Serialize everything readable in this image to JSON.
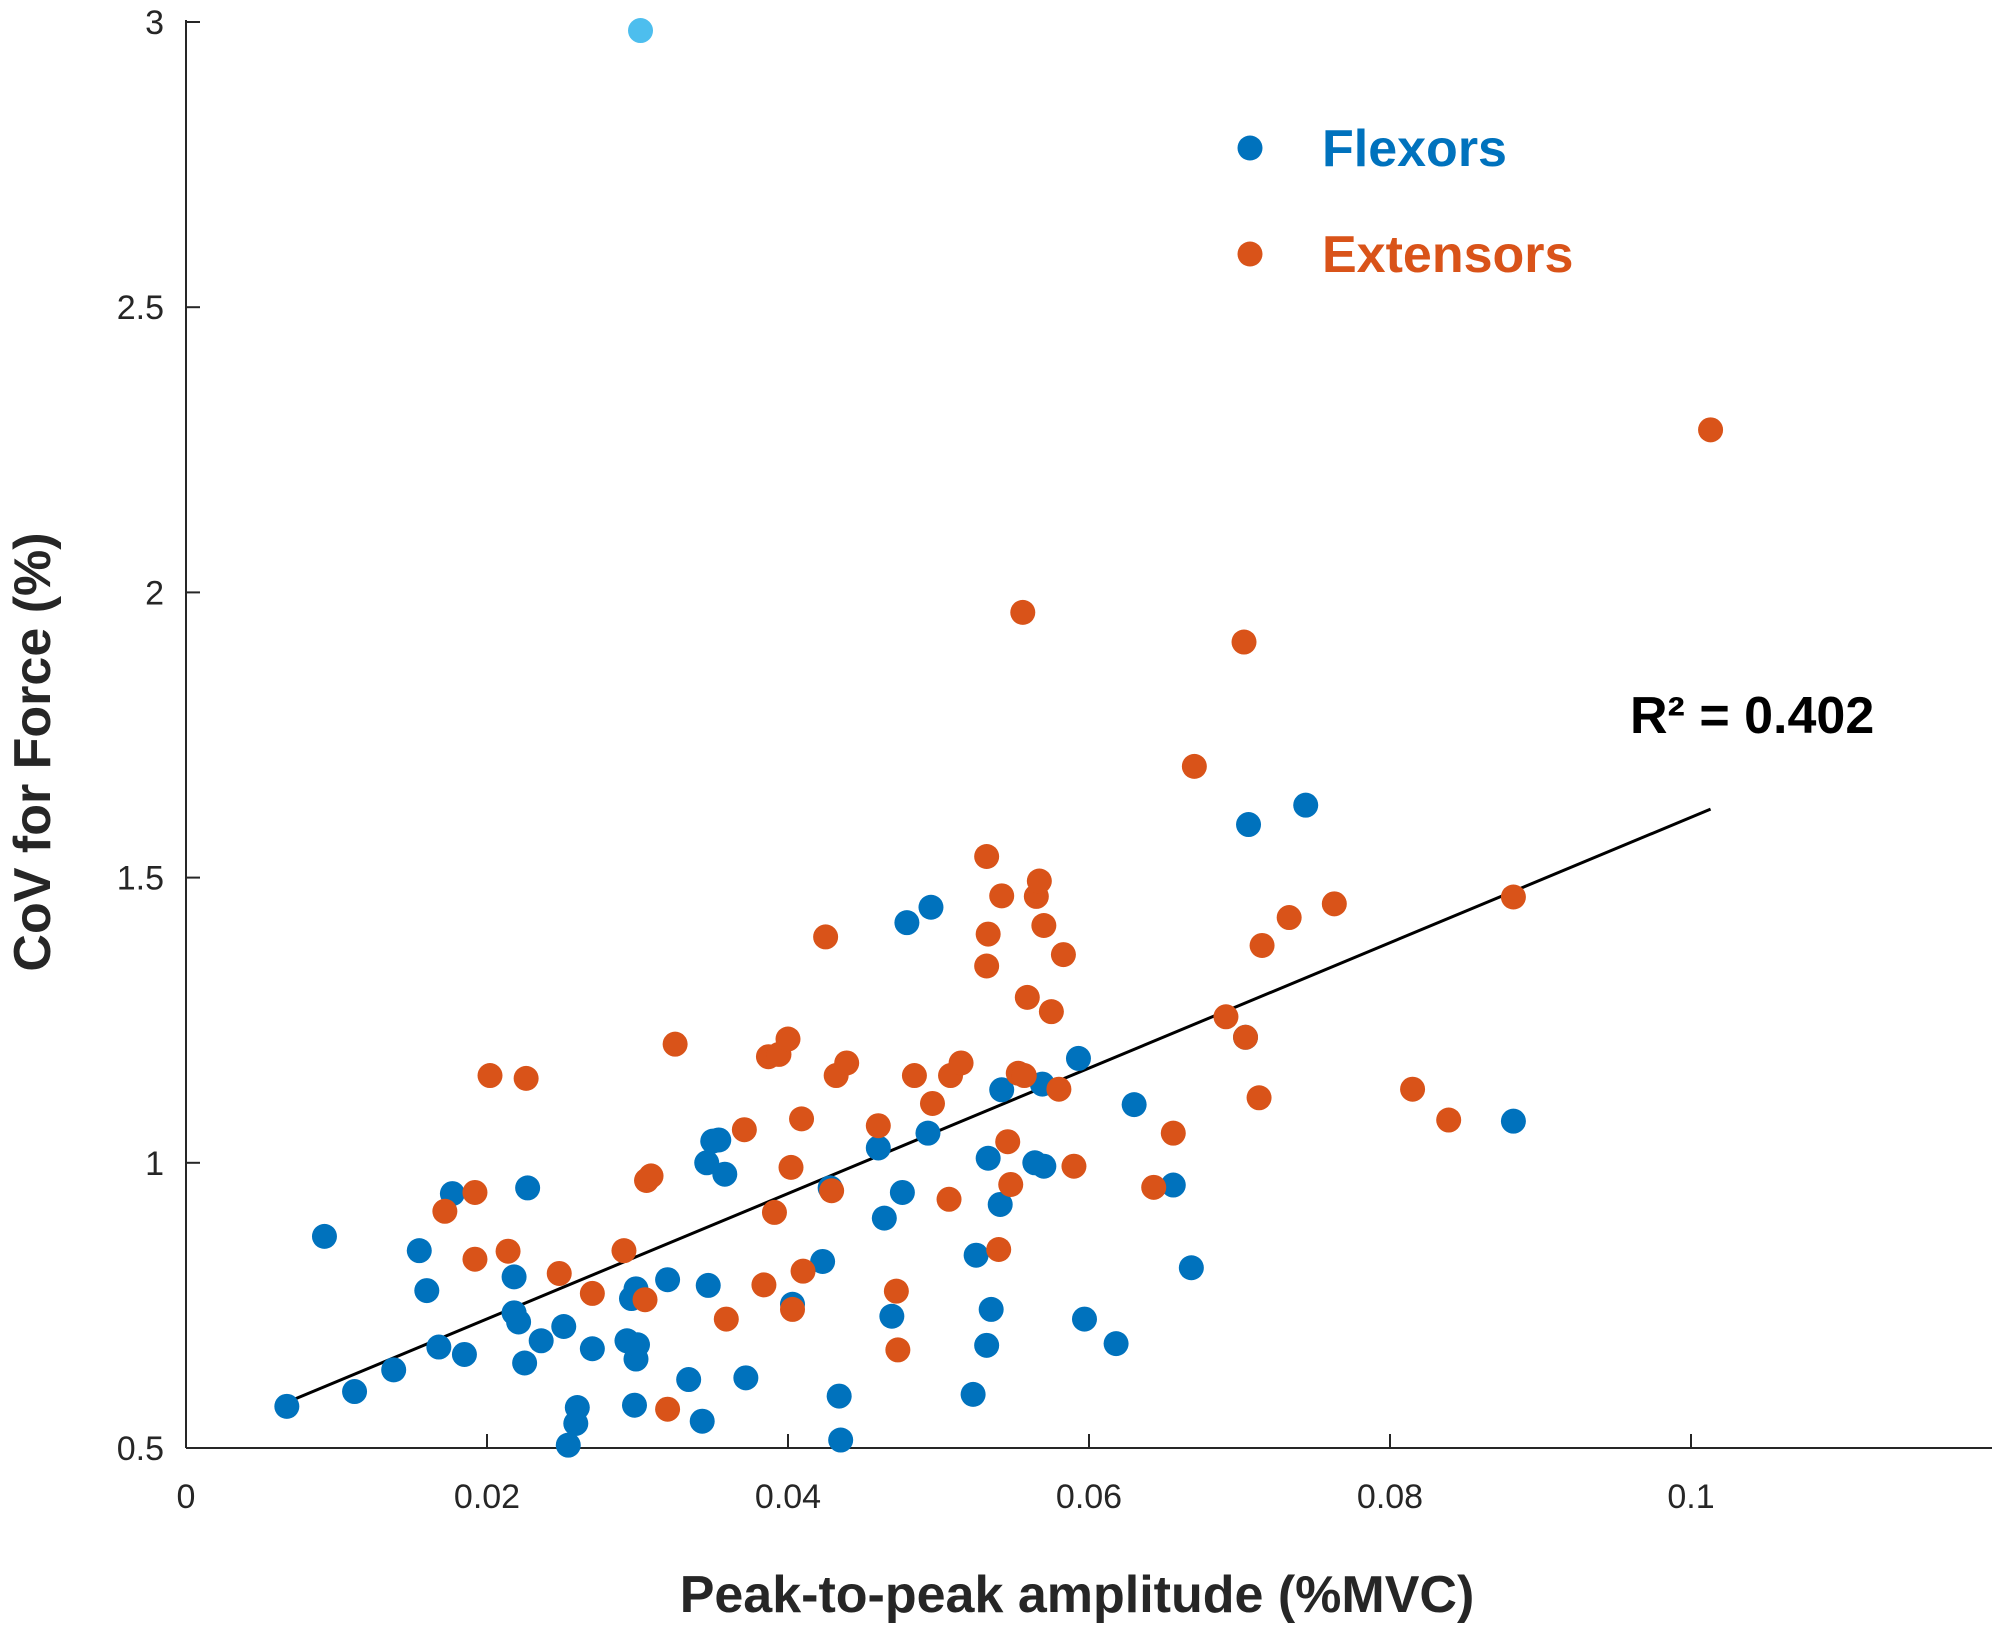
{
  "chart_data": {
    "type": "scatter",
    "xlabel": "Peak-to-peak amplitude (%MVC)",
    "ylabel": "CoV for Force (%)",
    "xlim": [
      0,
      0.12
    ],
    "ylim": [
      0.5,
      3
    ],
    "x_ticks": [
      0,
      0.02,
      0.04,
      0.06,
      0.08,
      0.1
    ],
    "x_tick_labels": [
      "0",
      "0.02",
      "0.04",
      "0.06",
      "0.08",
      "0.1"
    ],
    "y_ticks": [
      0.5,
      1,
      1.5,
      2,
      2.5,
      3
    ],
    "y_tick_labels": [
      "0.5",
      "1",
      "1.5",
      "2",
      "2.5",
      "3"
    ],
    "grid": false,
    "legend_position": "top-right",
    "colors": {
      "flexors": "#0072BD",
      "extensors": "#D95319",
      "highlight": "#4DBEEE",
      "fit": "#000000",
      "axis": "#262626"
    },
    "series": [
      {
        "name": "Flexors",
        "color": "#0072BD",
        "points": [
          [
            0.0067,
            0.573
          ],
          [
            0.0092,
            0.871
          ],
          [
            0.0112,
            0.599
          ],
          [
            0.0138,
            0.637
          ],
          [
            0.0155,
            0.846
          ],
          [
            0.016,
            0.776
          ],
          [
            0.0168,
            0.677
          ],
          [
            0.0177,
            0.946
          ],
          [
            0.0185,
            0.664
          ],
          [
            0.0218,
            0.737
          ],
          [
            0.0218,
            0.8
          ],
          [
            0.0221,
            0.721
          ],
          [
            0.0225,
            0.649
          ],
          [
            0.0227,
            0.956
          ],
          [
            0.0236,
            0.688
          ],
          [
            0.0251,
            0.713
          ],
          [
            0.0254,
            0.505
          ],
          [
            0.0259,
            0.543
          ],
          [
            0.026,
            0.571
          ],
          [
            0.027,
            0.674
          ],
          [
            0.0293,
            0.688
          ],
          [
            0.0296,
            0.762
          ],
          [
            0.0298,
            0.575
          ],
          [
            0.0299,
            0.656
          ],
          [
            0.03,
            0.681
          ],
          [
            0.0299,
            0.779
          ],
          [
            0.032,
            0.795
          ],
          [
            0.0334,
            0.62
          ],
          [
            0.0343,
            0.547
          ],
          [
            0.0346,
            1.0
          ],
          [
            0.0347,
            0.785
          ],
          [
            0.035,
            1.038
          ],
          [
            0.0354,
            1.04
          ],
          [
            0.0358,
            0.98
          ],
          [
            0.0372,
            0.623
          ],
          [
            0.0403,
            0.752
          ],
          [
            0.0423,
            0.827
          ],
          [
            0.0428,
            0.956
          ],
          [
            0.0434,
            0.591
          ],
          [
            0.0435,
            0.514
          ],
          [
            0.046,
            1.026
          ],
          [
            0.0464,
            0.903
          ],
          [
            0.0469,
            0.731
          ],
          [
            0.0476,
            0.948
          ],
          [
            0.0479,
            1.421
          ],
          [
            0.0493,
            1.052
          ],
          [
            0.0495,
            1.448
          ],
          [
            0.0523,
            0.594
          ],
          [
            0.0525,
            0.838
          ],
          [
            0.0532,
            0.68
          ],
          [
            0.0533,
            1.008
          ],
          [
            0.0535,
            0.743
          ],
          [
            0.0541,
            0.927
          ],
          [
            0.0542,
            1.128
          ],
          [
            0.0564,
            1.0
          ],
          [
            0.0569,
            1.138
          ],
          [
            0.057,
            0.994
          ],
          [
            0.0593,
            1.183
          ],
          [
            0.0597,
            0.726
          ],
          [
            0.0618,
            0.683
          ],
          [
            0.063,
            1.102
          ],
          [
            0.0656,
            0.961
          ],
          [
            0.0668,
            0.816
          ],
          [
            0.0704,
            1.22
          ],
          [
            0.0706,
            1.593
          ],
          [
            0.0744,
            1.627
          ],
          [
            0.0882,
            1.073
          ]
        ]
      },
      {
        "name": "Extensors",
        "color": "#D95319",
        "points": [
          [
            0.0172,
            0.915
          ],
          [
            0.0192,
            0.948
          ],
          [
            0.0192,
            0.831
          ],
          [
            0.0202,
            1.153
          ],
          [
            0.0214,
            0.845
          ],
          [
            0.0226,
            1.148
          ],
          [
            0.0248,
            0.806
          ],
          [
            0.027,
            0.771
          ],
          [
            0.0291,
            0.846
          ],
          [
            0.0305,
            0.76
          ],
          [
            0.0306,
            0.969
          ],
          [
            0.0309,
            0.977
          ],
          [
            0.032,
            0.568
          ],
          [
            0.0325,
            1.208
          ],
          [
            0.0359,
            0.726
          ],
          [
            0.0371,
            1.058
          ],
          [
            0.0384,
            0.786
          ],
          [
            0.0387,
            1.186
          ],
          [
            0.0391,
            0.913
          ],
          [
            0.0394,
            1.19
          ],
          [
            0.04,
            1.217
          ],
          [
            0.0402,
            0.992
          ],
          [
            0.0403,
            0.743
          ],
          [
            0.0409,
            1.077
          ],
          [
            0.041,
            0.81
          ],
          [
            0.0425,
            1.396
          ],
          [
            0.0429,
            0.951
          ],
          [
            0.0432,
            1.153
          ],
          [
            0.0439,
            1.175
          ],
          [
            0.046,
            1.065
          ],
          [
            0.0472,
            0.775
          ],
          [
            0.0473,
            0.672
          ],
          [
            0.0484,
            1.153
          ],
          [
            0.0496,
            1.104
          ],
          [
            0.0507,
            0.936
          ],
          [
            0.0508,
            1.153
          ],
          [
            0.0515,
            1.175
          ],
          [
            0.0532,
            1.537
          ],
          [
            0.0533,
            1.401
          ],
          [
            0.0532,
            1.345
          ],
          [
            0.054,
            0.848
          ],
          [
            0.0542,
            1.468
          ],
          [
            0.0546,
            1.037
          ],
          [
            0.0548,
            0.962
          ],
          [
            0.0553,
            1.157
          ],
          [
            0.0556,
            1.965
          ],
          [
            0.0557,
            1.153
          ],
          [
            0.0559,
            1.29
          ],
          [
            0.0565,
            1.467
          ],
          [
            0.0567,
            1.494
          ],
          [
            0.057,
            1.416
          ],
          [
            0.0575,
            1.265
          ],
          [
            0.058,
            1.129
          ],
          [
            0.0583,
            1.365
          ],
          [
            0.059,
            0.994
          ],
          [
            0.0643,
            0.957
          ],
          [
            0.0656,
            1.052
          ],
          [
            0.067,
            1.695
          ],
          [
            0.0691,
            1.256
          ],
          [
            0.0703,
            1.913
          ],
          [
            0.0704,
            1.22
          ],
          [
            0.0713,
            1.114
          ],
          [
            0.0715,
            1.381
          ],
          [
            0.0733,
            1.43
          ],
          [
            0.0763,
            1.454
          ],
          [
            0.0815,
            1.129
          ],
          [
            0.0839,
            1.075
          ],
          [
            0.0882,
            1.466
          ],
          [
            0.1013,
            2.285
          ]
        ]
      },
      {
        "name": "",
        "color": "#4DBEEE",
        "points": [
          [
            0.0302,
            2.985
          ]
        ]
      }
    ],
    "fit_line": {
      "x": [
        0.0067,
        0.1013
      ],
      "y": [
        0.58,
        1.62
      ]
    },
    "legend": [
      {
        "label": "Flexors",
        "color": "#0072BD"
      },
      {
        "label": "Extensors",
        "color": "#D95319"
      }
    ],
    "annotations": {
      "r_squared": "R² = 0.402"
    }
  }
}
